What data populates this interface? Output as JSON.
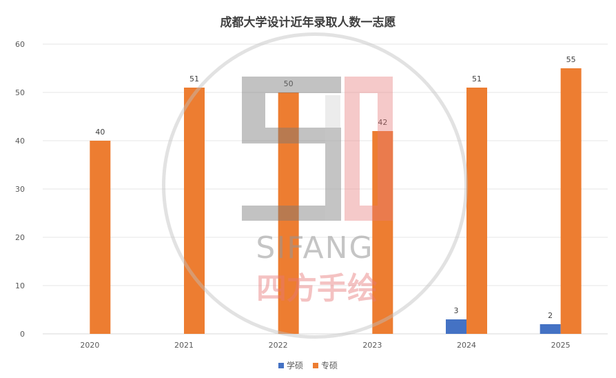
{
  "chart_data": {
    "type": "bar",
    "title": "成都大学设计近年录取人数一志愿",
    "categories": [
      "2020",
      "2021",
      "2022",
      "2023",
      "2024",
      "2025"
    ],
    "series": [
      {
        "name": "学硕",
        "values": [
          null,
          null,
          null,
          null,
          3,
          2
        ],
        "color": "#4472C4"
      },
      {
        "name": "专硕",
        "values": [
          40,
          51,
          50,
          42,
          51,
          55
        ],
        "color": "#ED7D31"
      }
    ],
    "ylim": [
      0,
      60
    ],
    "yticks": [
      0,
      10,
      20,
      30,
      40,
      50,
      60
    ],
    "grid": true,
    "legend": "bottom"
  },
  "watermark": {
    "text": "SIFANG",
    "text_cn": "四方手绘"
  }
}
